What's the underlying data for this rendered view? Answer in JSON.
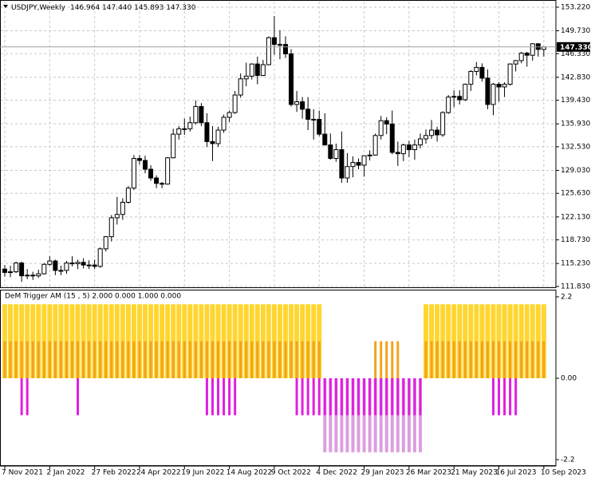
{
  "chart_data": [
    {
      "type": "candlestick",
      "title": "USDJPY,Weekly",
      "subtitle": "146.964 147.440 145.893 147.330",
      "categories": [
        "7 Nov 2021",
        null,
        null,
        null,
        null,
        null,
        null,
        null,
        "2 Jan 2022",
        null,
        null,
        null,
        null,
        null,
        null,
        null,
        "27 Feb 2022",
        null,
        null,
        null,
        null,
        null,
        null,
        null,
        "24 Apr 2022",
        null,
        null,
        null,
        null,
        null,
        null,
        null,
        "19 Jun 2022",
        null,
        null,
        null,
        null,
        null,
        null,
        null,
        "14 Aug 2022",
        null,
        null,
        null,
        null,
        null,
        null,
        null,
        "9 Oct 2022",
        null,
        null,
        null,
        null,
        null,
        null,
        null,
        "4 Dec 2022",
        null,
        null,
        null,
        null,
        null,
        null,
        null,
        "29 Jan 2023",
        null,
        null,
        null,
        null,
        null,
        null,
        null,
        "26 Mar 2023",
        null,
        null,
        null,
        null,
        null,
        null,
        null,
        "21 May 2023",
        null,
        null,
        null,
        null,
        null,
        null,
        null,
        "16 Jul 2023",
        null,
        null,
        null,
        null,
        null,
        null,
        null,
        "10 Sep 2023"
      ],
      "open": [
        114.4,
        113.9,
        114.0,
        115.3,
        113.4,
        113.5,
        113.4,
        113.7,
        115.1,
        115.6,
        114.2,
        114.2,
        115.3,
        115.2,
        115.4,
        115.0,
        115.0,
        114.8,
        117.4,
        119.2,
        122.0,
        122.5,
        124.3,
        126.4,
        130.8,
        130.5,
        129.2,
        127.9,
        127.1,
        127.0,
        130.9,
        134.4,
        135.2,
        135.2,
        136.1,
        138.5,
        136.1,
        133.3,
        133.0,
        135.0,
        136.9,
        137.6,
        140.2,
        142.6,
        143.0,
        144.8,
        143.1,
        144.7,
        148.7,
        147.7,
        147.7,
        146.3,
        138.8,
        139.2,
        138.1,
        136.6,
        136.6,
        134.4,
        132.8,
        130.8,
        132.1,
        127.9,
        129.6,
        130.2,
        129.8,
        131.2,
        131.3,
        134.2,
        136.4,
        135.9,
        131.7,
        131.5,
        132.8,
        132.1,
        132.8,
        133.7,
        134.2,
        135.0,
        134.3,
        137.6,
        139.9,
        140.0,
        139.5,
        141.8,
        143.7,
        144.3,
        142.7,
        138.8,
        141.8,
        141.4,
        141.8,
        144.8,
        145.3,
        146.4,
        146.1,
        147.8,
        146.964
      ],
      "high": [
        115.0,
        114.9,
        115.5,
        115.5,
        114.4,
        114.0,
        114.3,
        115.3,
        116.3,
        115.8,
        114.9,
        115.6,
        116.3,
        115.8,
        116.0,
        115.7,
        115.8,
        117.6,
        119.3,
        122.4,
        125.1,
        124.9,
        126.7,
        131.3,
        131.3,
        131.2,
        129.8,
        128.3,
        127.3,
        131.0,
        135.2,
        135.6,
        136.7,
        137.0,
        139.4,
        139.0,
        137.5,
        135.6,
        135.5,
        137.3,
        137.9,
        140.8,
        143.4,
        145.0,
        144.9,
        145.9,
        145.4,
        148.9,
        151.9,
        149.8,
        148.9,
        147.0,
        140.8,
        139.9,
        139.9,
        138.1,
        137.9,
        137.5,
        134.5,
        133.0,
        134.8,
        131.6,
        131.1,
        130.8,
        131.2,
        132.0,
        134.5,
        137.1,
        136.9,
        137.9,
        133.3,
        133.0,
        133.4,
        133.6,
        134.5,
        135.1,
        136.5,
        135.5,
        137.8,
        140.2,
        140.9,
        140.9,
        141.9,
        143.9,
        145.1,
        144.9,
        144.0,
        142.0,
        142.1,
        142.1,
        144.9,
        145.4,
        146.6,
        146.6,
        147.9,
        147.9,
        147.44
      ],
      "low": [
        113.3,
        113.2,
        113.8,
        112.5,
        112.9,
        112.8,
        113.1,
        113.6,
        114.9,
        113.5,
        113.5,
        113.7,
        114.8,
        114.4,
        114.5,
        114.4,
        114.4,
        114.6,
        117.0,
        118.5,
        121.0,
        121.7,
        124.1,
        126.1,
        129.9,
        128.6,
        127.5,
        126.4,
        126.4,
        126.9,
        130.8,
        133.6,
        134.3,
        134.8,
        135.8,
        135.6,
        132.5,
        130.4,
        132.5,
        134.6,
        136.2,
        137.4,
        139.8,
        141.5,
        142.5,
        141.8,
        143.0,
        144.6,
        146.2,
        145.5,
        145.7,
        138.5,
        137.7,
        136.7,
        135.0,
        133.6,
        134.1,
        132.7,
        130.6,
        130.3,
        127.2,
        127.2,
        128.0,
        129.2,
        128.1,
        130.5,
        131.2,
        133.6,
        134.4,
        131.4,
        129.7,
        130.4,
        131.0,
        130.6,
        132.3,
        133.0,
        133.7,
        133.3,
        134.0,
        137.4,
        138.4,
        138.8,
        139.3,
        140.8,
        143.1,
        142.2,
        138.1,
        137.2,
        139.2,
        139.9,
        141.6,
        143.7,
        144.9,
        144.4,
        145.3,
        145.9,
        145.893
      ],
      "close": [
        113.9,
        114.0,
        115.3,
        113.4,
        113.5,
        113.4,
        113.7,
        115.1,
        115.6,
        114.2,
        114.2,
        115.3,
        115.2,
        115.4,
        115.0,
        115.0,
        114.8,
        117.4,
        119.2,
        122.0,
        122.5,
        124.3,
        126.4,
        130.8,
        130.5,
        129.2,
        127.9,
        127.1,
        127.0,
        130.9,
        134.4,
        135.2,
        135.2,
        136.1,
        138.5,
        136.1,
        133.3,
        133.0,
        135.0,
        136.9,
        137.6,
        140.2,
        142.6,
        143.0,
        144.8,
        143.1,
        144.7,
        148.7,
        147.7,
        147.7,
        146.3,
        138.8,
        139.2,
        138.1,
        136.6,
        136.6,
        134.4,
        132.8,
        130.8,
        132.1,
        127.9,
        129.6,
        130.2,
        129.8,
        131.2,
        131.3,
        134.2,
        136.4,
        135.9,
        131.7,
        131.5,
        132.8,
        132.1,
        132.8,
        133.7,
        134.2,
        135.0,
        134.3,
        137.6,
        139.9,
        140.0,
        139.5,
        141.8,
        143.7,
        144.3,
        142.7,
        138.8,
        141.8,
        141.4,
        141.8,
        144.8,
        145.3,
        146.4,
        146.1,
        147.8,
        146.96,
        147.33
      ],
      "last_price": {
        "value": 147.33,
        "label": "147.330"
      },
      "up_color": "#ffffff",
      "down_color": "#000000",
      "ylim": [
        111.7,
        154.05
      ],
      "yticks": [
        {
          "value": 153.22,
          "label": "153.220"
        },
        {
          "value": 149.73,
          "label": "149.730"
        },
        {
          "value": 146.33,
          "label": "146.330"
        },
        {
          "value": 142.83,
          "label": "142.830"
        },
        {
          "value": 139.43,
          "label": "139.430"
        },
        {
          "value": 135.93,
          "label": "135.930"
        },
        {
          "value": 132.53,
          "label": "132.530"
        },
        {
          "value": 129.03,
          "label": "129.030"
        },
        {
          "value": 125.63,
          "label": "125.630"
        },
        {
          "value": 122.13,
          "label": "122.130"
        },
        {
          "value": 118.73,
          "label": "118.730"
        },
        {
          "value": 115.23,
          "label": "115.230"
        },
        {
          "value": 111.83,
          "label": "111.830"
        }
      ],
      "grid": true
    },
    {
      "type": "bar",
      "title": "DeM Trigger AM (15 , 5) 2.000 0.000 1.000 0.000",
      "series": [
        {
          "color": "#ffd630",
          "values": [
            2,
            2,
            2,
            2,
            2,
            2,
            2,
            2,
            2,
            2,
            2,
            2,
            2,
            2,
            2,
            2,
            2,
            2,
            2,
            2,
            2,
            2,
            2,
            2,
            2,
            2,
            2,
            2,
            2,
            2,
            2,
            2,
            2,
            2,
            2,
            2,
            2,
            2,
            2,
            2,
            2,
            2,
            2,
            2,
            2,
            2,
            2,
            2,
            2,
            2,
            2,
            2,
            2,
            2,
            2,
            2,
            2,
            0,
            0,
            0,
            0,
            0,
            0,
            0,
            0,
            0,
            0,
            0,
            0,
            0,
            0,
            0,
            0,
            0,
            0,
            2,
            2,
            2,
            2,
            2,
            2,
            2,
            2,
            2,
            2,
            2,
            2,
            2,
            2,
            2,
            2,
            2,
            2,
            2,
            2,
            2,
            2
          ]
        },
        {
          "color": "#f2a31c",
          "values": [
            1,
            1,
            1,
            1,
            1,
            1,
            1,
            1,
            1,
            1,
            1,
            1,
            1,
            1,
            1,
            1,
            1,
            1,
            1,
            1,
            1,
            1,
            1,
            1,
            1,
            1,
            1,
            1,
            1,
            1,
            1,
            1,
            1,
            1,
            1,
            1,
            1,
            1,
            1,
            1,
            1,
            1,
            1,
            1,
            1,
            1,
            1,
            1,
            1,
            1,
            1,
            1,
            1,
            1,
            1,
            1,
            1,
            0,
            0,
            0,
            0,
            0,
            0,
            0,
            0,
            0,
            1,
            1,
            1,
            1,
            1,
            0,
            0,
            0,
            0,
            1,
            1,
            1,
            1,
            1,
            1,
            1,
            1,
            1,
            1,
            1,
            1,
            1,
            1,
            1,
            1,
            1,
            1,
            1,
            1,
            1,
            1
          ]
        },
        {
          "color": "#dc9ee0",
          "values": [
            0,
            0,
            0,
            0,
            0,
            0,
            0,
            0,
            0,
            0,
            0,
            0,
            0,
            0,
            0,
            0,
            0,
            0,
            0,
            0,
            0,
            0,
            0,
            0,
            0,
            0,
            0,
            0,
            0,
            0,
            0,
            0,
            0,
            0,
            0,
            0,
            0,
            0,
            0,
            0,
            0,
            0,
            0,
            0,
            0,
            0,
            0,
            0,
            0,
            0,
            0,
            0,
            0,
            0,
            0,
            0,
            0,
            -2,
            -2,
            -2,
            -2,
            -2,
            -2,
            -2,
            -2,
            -2,
            -2,
            -2,
            -2,
            -2,
            -2,
            -2,
            -2,
            -2,
            -2,
            0,
            0,
            0,
            0,
            0,
            0,
            0,
            0,
            0,
            0,
            0,
            0,
            0,
            0,
            0,
            0,
            0,
            0,
            0,
            0,
            0,
            0
          ]
        },
        {
          "color": "#e01fe0",
          "values": [
            0,
            0,
            0,
            -1,
            -1,
            0,
            0,
            0,
            0,
            0,
            0,
            0,
            0,
            -1,
            0,
            0,
            0,
            0,
            0,
            0,
            0,
            0,
            0,
            0,
            0,
            0,
            0,
            0,
            0,
            0,
            0,
            0,
            0,
            0,
            0,
            0,
            -1,
            -1,
            -1,
            -1,
            -1,
            -1,
            0,
            0,
            0,
            0,
            0,
            0,
            0,
            0,
            0,
            0,
            -1,
            -1,
            -1,
            -1,
            -1,
            -1,
            -1,
            -1,
            -1,
            -1,
            -1,
            -1,
            -1,
            -1,
            -1,
            -1,
            -1,
            -1,
            -1,
            -1,
            -1,
            -1,
            -1,
            0,
            0,
            0,
            0,
            0,
            0,
            0,
            0,
            0,
            0,
            0,
            0,
            -1,
            -1,
            -1,
            -1,
            -1,
            0,
            0,
            0,
            0,
            0
          ]
        }
      ],
      "ylim": [
        -2.35,
        2.35
      ],
      "yticks": [
        2.2,
        {
          "value": 0,
          "label": "0.00"
        },
        -2.2
      ]
    }
  ]
}
